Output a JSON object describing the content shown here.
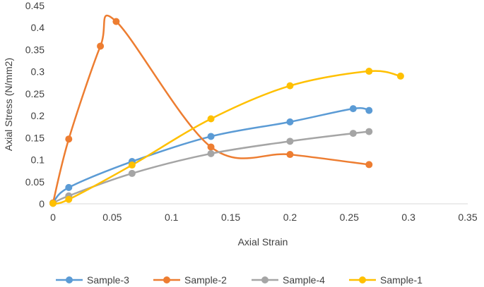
{
  "chart_data": {
    "type": "scatter",
    "title": "",
    "xlabel": "Axial Strain",
    "ylabel": "Axial Stress (N/mm2)",
    "xlim": [
      0,
      0.35
    ],
    "ylim": [
      0,
      0.45
    ],
    "xticks": [
      0,
      0.05,
      0.1,
      0.15,
      0.2,
      0.25,
      0.3,
      0.35
    ],
    "xtick_labels": [
      "0",
      "0.05",
      "0.1",
      "0.15",
      "0.2",
      "0.25",
      "0.3",
      "0.35"
    ],
    "yticks": [
      0,
      0.05,
      0.1,
      0.15,
      0.2,
      0.25,
      0.3,
      0.35,
      0.4,
      0.45
    ],
    "ytick_labels": [
      "0",
      "0.05",
      "0.1",
      "0.15",
      "0.2",
      "0.25",
      "0.3",
      "0.35",
      "0.4",
      "0.45"
    ],
    "grid": false,
    "legend_position": "bottom",
    "smooth_lines": true,
    "series": [
      {
        "name": "Sample-3",
        "color": "#5B9BD5",
        "x": [
          0,
          0.0133,
          0.0667,
          0.1333,
          0.2,
          0.2533,
          0.2667
        ],
        "y": [
          0.002,
          0.037,
          0.096,
          0.153,
          0.186,
          0.216,
          0.212
        ]
      },
      {
        "name": "Sample-2",
        "color": "#ED7D31",
        "x": [
          0,
          0.0133,
          0.04,
          0.0533,
          0.1333,
          0.2,
          0.2667
        ],
        "y": [
          0.002,
          0.147,
          0.358,
          0.414,
          0.129,
          0.112,
          0.089
        ]
      },
      {
        "name": "Sample-4",
        "color": "#A5A5A5",
        "x": [
          0,
          0.0133,
          0.0667,
          0.1333,
          0.2,
          0.2533,
          0.2667
        ],
        "y": [
          0.001,
          0.018,
          0.069,
          0.114,
          0.142,
          0.16,
          0.164
        ]
      },
      {
        "name": "Sample-1",
        "color": "#FFC000",
        "x": [
          0,
          0.0133,
          0.0667,
          0.1333,
          0.2,
          0.2667,
          0.2933
        ],
        "y": [
          0.001,
          0.01,
          0.088,
          0.193,
          0.268,
          0.301,
          0.29
        ]
      }
    ]
  }
}
